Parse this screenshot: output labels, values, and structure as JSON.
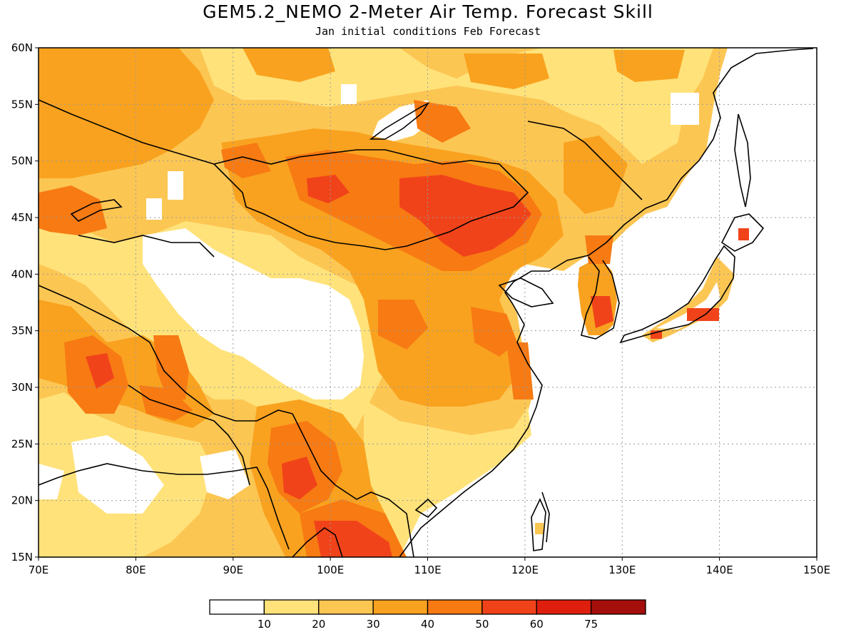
{
  "title": "GEM5.2_NEMO 2-Meter Air Temp. Forecast Skill",
  "subtitle": "Jan initial conditions  Feb Forecast",
  "map": {
    "lon_range": [
      70,
      150
    ],
    "lat_range": [
      15,
      60
    ],
    "lon_ticks": [
      "70E",
      "80E",
      "90E",
      "100E",
      "110E",
      "120E",
      "130E",
      "140E",
      "150E"
    ],
    "lat_ticks": [
      "15N",
      "20N",
      "25N",
      "30N",
      "35N",
      "40N",
      "45N",
      "50N",
      "55N",
      "60N"
    ],
    "gridlines": "dotted"
  },
  "colorbar": {
    "levels": [
      "10",
      "20",
      "30",
      "40",
      "50",
      "60",
      "75"
    ],
    "colors": [
      "#ffffff",
      "#ffe27a",
      "#fcc653",
      "#f9a21f",
      "#f77a13",
      "#f1431a",
      "#de1f0d",
      "#a40f0b"
    ]
  }
}
